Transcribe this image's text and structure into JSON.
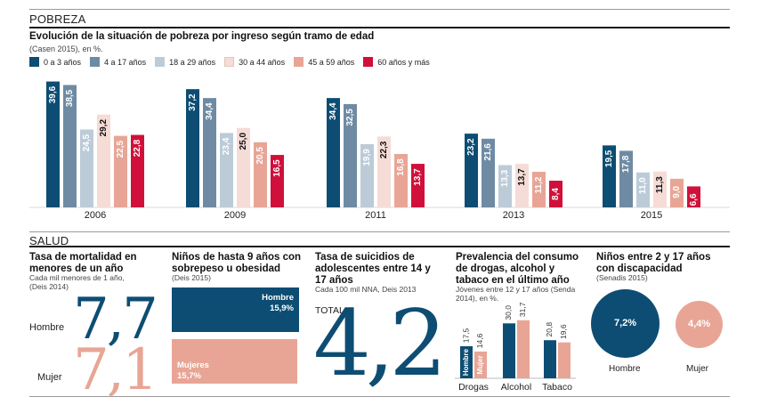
{
  "pobreza": {
    "section_title": "POBREZA",
    "title": "Evolución de la situación de pobreza por ingreso según tramo de edad",
    "subtitle": "(Casen 2015), en %."
  },
  "salud": {
    "section_title": "SALUD",
    "mortalidad": {
      "title_lines": [
        "Tasa de mortalidad en",
        "menores de un año"
      ],
      "subtitle_lines": [
        "Cada mil menores de 1 año,",
        "(Deis 2014)"
      ],
      "hombre_label": "Hombre",
      "hombre_value": "7,7",
      "mujer_label": "Mujer",
      "mujer_value": "7,1"
    },
    "sobrepeso": {
      "title_lines": [
        "Niños de hasta 9 años con",
        "sobrepeso u obesidad"
      ],
      "subtitle": "(Deis 2015)",
      "hombre_label": "Hombre",
      "hombre_value": "15,9%",
      "mujeres_label": "Mujeres",
      "mujeres_value": "15,7%",
      "hombre_pct": 15.9,
      "mujeres_pct": 15.7
    },
    "suicidios": {
      "title_lines": [
        "Tasa de suicidios de",
        "adolescentes entre 14 y",
        "17 años"
      ],
      "subtitle": "Cada 100 mil NNA, Deis 2013",
      "total_label": "TOTAL",
      "value": "4,2"
    },
    "drogas": {
      "title_lines": [
        "Prevalencia del consumo",
        "de drogas, alcohol y",
        "tabaco en el último año"
      ],
      "subtitle_lines": [
        "Jóvenes entre 12 y 17 años (Senda",
        "2014), en %."
      ],
      "hombre_label": "Hombre",
      "mujer_label": "Mujer"
    },
    "discapacidad": {
      "title_lines": [
        "Niños entre 2 y 17 años",
        "con discapacidad"
      ],
      "subtitle": "(Senadis 2015)",
      "hombre_label": "Hombre",
      "hombre_value": "7,2%",
      "mujer_label": "Mujer",
      "mujer_value": "4,4%",
      "hombre_pct": 7.2,
      "mujer_pct": 4.4
    }
  },
  "colors": {
    "navy": "#0d4d73",
    "steel": "#6f8ba3",
    "lightblue": "#bccbd8",
    "pink": "#f5dcd6",
    "salmon": "#e8a596",
    "red": "#d0103a"
  },
  "chart_data": [
    {
      "type": "bar",
      "categories": [
        "2006",
        "2009",
        "2011",
        "2013",
        "2015"
      ],
      "series": [
        {
          "name": "0 a 3 años",
          "color": "#0d4d73",
          "label_color": "#ffffff",
          "values": [
            39.6,
            37.2,
            34.4,
            23.2,
            19.5
          ],
          "labels": [
            "39,6",
            "37,2",
            "34,4",
            "23,2",
            "19,5"
          ]
        },
        {
          "name": "4 a 17 años",
          "color": "#6f8ba3",
          "label_color": "#ffffff",
          "values": [
            38.5,
            34.4,
            32.5,
            21.6,
            17.8
          ],
          "labels": [
            "38,5",
            "34,4",
            "32,5",
            "21,6",
            "17,8"
          ]
        },
        {
          "name": "18 a 29 años",
          "color": "#bccbd8",
          "label_color": "#ffffff",
          "values": [
            24.5,
            23.4,
            19.9,
            13.3,
            11.0
          ],
          "labels": [
            "24,5",
            "23,4",
            "19,9",
            "13,3",
            "11,0"
          ]
        },
        {
          "name": "30 a 44 años",
          "color": "#f5dcd6",
          "label_color": "#111111",
          "values": [
            29.2,
            25.0,
            22.3,
            13.7,
            11.3
          ],
          "labels": [
            "29,2",
            "25,0",
            "22,3",
            "13,7",
            "11,3"
          ]
        },
        {
          "name": "45 a 59 años",
          "color": "#e8a596",
          "label_color": "#ffffff",
          "values": [
            22.5,
            20.5,
            16.8,
            11.2,
            9.0
          ],
          "labels": [
            "22,5",
            "20,5",
            "16,8",
            "11,2",
            "9,0"
          ]
        },
        {
          "name": "60 años y más",
          "color": "#d0103a",
          "label_color": "#ffffff",
          "values": [
            22.8,
            16.5,
            13.7,
            8.4,
            6.6
          ],
          "labels": [
            "22,8",
            "16,5",
            "13,7",
            "8,4",
            "6,6"
          ]
        }
      ],
      "ylim": [
        0,
        42
      ]
    },
    {
      "type": "bar",
      "categories": [
        "Drogas",
        "Alcohol",
        "Tabaco"
      ],
      "series": [
        {
          "name": "Hombre",
          "color": "#0d4d73",
          "values": [
            17.5,
            30.0,
            20.8
          ],
          "labels": [
            "17,5",
            "30,0",
            "20,8"
          ]
        },
        {
          "name": "Mujer",
          "color": "#e8a596",
          "values": [
            14.6,
            31.7,
            19.6
          ],
          "labels": [
            "14,6",
            "31,7",
            "19,6"
          ]
        }
      ],
      "ylim": [
        0,
        35
      ]
    }
  ]
}
